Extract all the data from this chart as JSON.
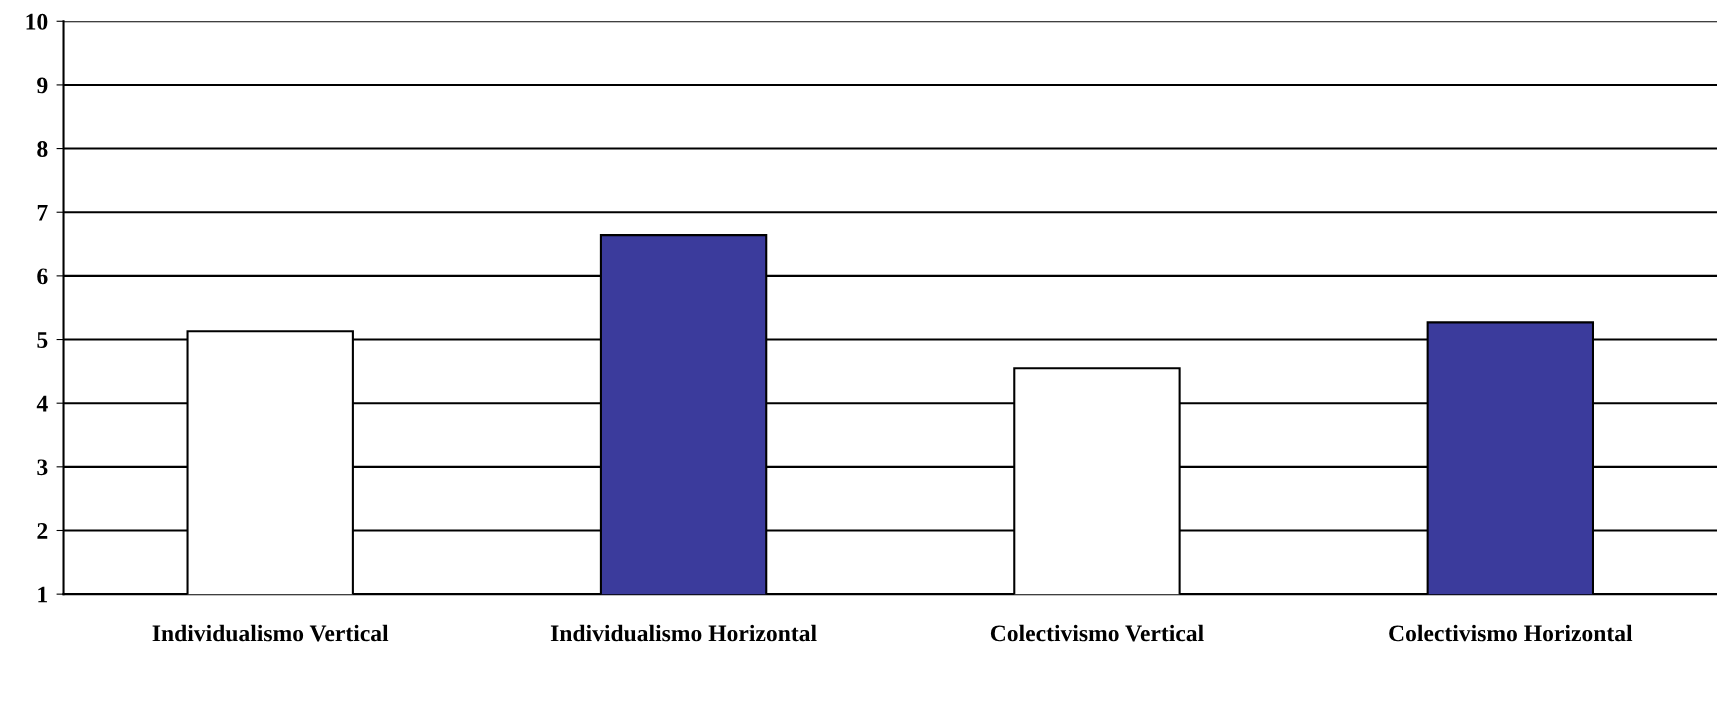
{
  "chart_data": {
    "type": "bar",
    "categories": [
      "Individualismo Vertical",
      "Individualismo Horizontal",
      "Colectivismo Vertical",
      "Colectivismo Horizontal"
    ],
    "values": [
      5.13,
      6.64,
      4.55,
      5.27
    ],
    "colors": [
      "#ffffff",
      "#3b3b9c",
      "#ffffff",
      "#3b3b9c"
    ],
    "ylim": [
      1,
      10
    ],
    "yticks": [
      1,
      2,
      3,
      4,
      5,
      6,
      7,
      8,
      9,
      10
    ],
    "grid": "y"
  }
}
